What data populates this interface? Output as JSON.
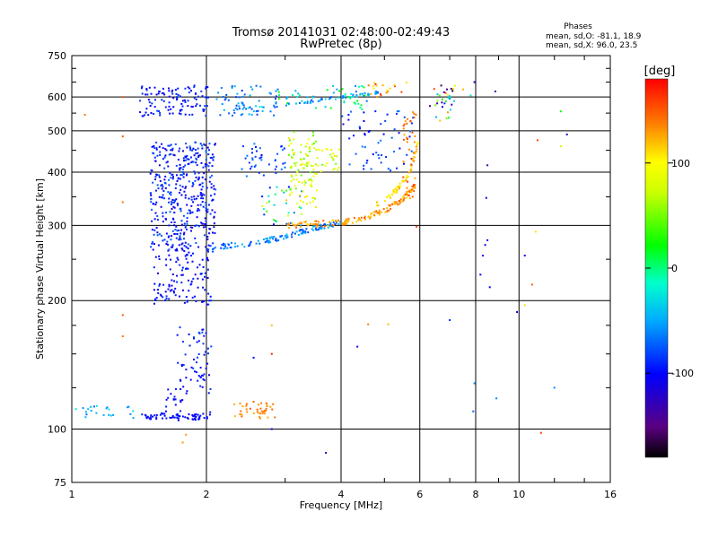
{
  "chart_data": {
    "type": "scatter",
    "title": "Tromsø 20141031 02:48:00-02:49:43",
    "subtitle": "RwPretec (8p)",
    "xlabel": "Frequency [MHz]",
    "ylabel": "Stationary phase Virtual Height [km]",
    "x_scale": "log",
    "y_scale": "log",
    "xlim": [
      1,
      16
    ],
    "ylim": [
      75,
      750
    ],
    "x_ticks": [
      1,
      2,
      4,
      6,
      8,
      10,
      16
    ],
    "x_tick_labels": [
      "1",
      "2",
      "4",
      "6",
      "8",
      "10",
      "16"
    ],
    "y_ticks": [
      75,
      100,
      200,
      300,
      400,
      500,
      600,
      750
    ],
    "y_tick_labels": [
      "75",
      "100",
      "200",
      "300",
      "400",
      "500",
      "600",
      "750"
    ],
    "grid": true,
    "phase_box": {
      "heading": "Phases",
      "line_o": "mean, sd,O: -81.1, 18.9",
      "line_x": "mean, sd,X:  96.0, 23.5"
    },
    "colorbar": {
      "label": "[deg]",
      "range": [
        -180,
        180
      ],
      "ticks": [
        100,
        0,
        -100
      ],
      "tick_labels": [
        "100",
        "0",
        "-100"
      ],
      "colormap": "rainbow"
    },
    "clusters": [
      {
        "x0": 1.42,
        "x1": 2.05,
        "y0": 540,
        "y1": 640,
        "n": 110,
        "p0": -110,
        "p1": -80
      },
      {
        "x0": 2.1,
        "x1": 2.9,
        "y0": 540,
        "y1": 640,
        "n": 60,
        "p0": -90,
        "p1": -40
      },
      {
        "x0": 2.9,
        "x1": 4.6,
        "y0": 560,
        "y1": 640,
        "n": 50,
        "p0": -80,
        "p1": 30
      },
      {
        "x0": 4.6,
        "x1": 5.6,
        "y0": 600,
        "y1": 650,
        "n": 18,
        "p0": 100,
        "p1": 170
      },
      {
        "x0": 1.5,
        "x1": 2.1,
        "y0": 260,
        "y1": 470,
        "n": 420,
        "p0": -120,
        "p1": -70
      },
      {
        "x0": 1.52,
        "x1": 2.05,
        "y0": 195,
        "y1": 260,
        "n": 110,
        "p0": -115,
        "p1": -85
      },
      {
        "x0": 2.4,
        "x1": 3.0,
        "y0": 390,
        "y1": 470,
        "n": 40,
        "p0": -100,
        "p1": -60
      },
      {
        "x0": 2.6,
        "x1": 3.3,
        "y0": 300,
        "y1": 370,
        "n": 35,
        "p0": -110,
        "p1": 120
      },
      {
        "x0": 3.05,
        "x1": 3.55,
        "y0": 330,
        "y1": 500,
        "n": 100,
        "p0": 40,
        "p1": 110
      },
      {
        "x0": 3.5,
        "x1": 4.0,
        "y0": 400,
        "y1": 460,
        "n": 25,
        "p0": 50,
        "p1": 110
      },
      {
        "x0": 4.0,
        "x1": 5.8,
        "y0": 400,
        "y1": 560,
        "n": 60,
        "p0": -110,
        "p1": -60
      },
      {
        "x0": 5.5,
        "x1": 5.9,
        "y0": 340,
        "y1": 560,
        "n": 40,
        "p0": 120,
        "p1": 160
      },
      {
        "x0": 1.72,
        "x1": 2.05,
        "y0": 120,
        "y1": 175,
        "n": 60,
        "p0": -110,
        "p1": -80
      },
      {
        "x0": 1.62,
        "x1": 1.78,
        "y0": 110,
        "y1": 125,
        "n": 18,
        "p0": -110,
        "p1": -90
      },
      {
        "x0": 1.0,
        "x1": 1.38,
        "y0": 106,
        "y1": 114,
        "n": 22,
        "p0": -70,
        "p1": -20
      },
      {
        "x0": 2.3,
        "x1": 2.85,
        "y0": 106,
        "y1": 116,
        "n": 40,
        "p0": 120,
        "p1": 150
      },
      {
        "x0": 6.3,
        "x1": 7.2,
        "y0": 520,
        "y1": 640,
        "n": 30,
        "p0": -150,
        "p1": 160
      }
    ],
    "traces": [
      {
        "name": "",
        "x": [
          1.42,
          1.6,
          1.78,
          1.92,
          2.04
        ],
        "y": [
          107.5,
          107,
          106.5,
          107,
          108
        ],
        "n": 70,
        "spread": 1.8,
        "p0": -110,
        "p1": -90
      },
      {
        "name": "",
        "x": [
          2.0,
          2.5,
          3.0,
          3.5,
          4.0
        ],
        "y": [
          266,
          272,
          282,
          296,
          305
        ],
        "n": 120,
        "spread": 4,
        "p0": -90,
        "p1": -40
      },
      {
        "name": "",
        "x": [
          3.0,
          3.5,
          4.0,
          4.5,
          5.0,
          5.5,
          5.9
        ],
        "y": [
          300,
          302,
          305,
          312,
          325,
          345,
          375
        ],
        "n": 150,
        "spread": 5,
        "p0": 110,
        "p1": 155
      },
      {
        "name": "",
        "x": [
          4.8,
          5.3,
          5.7,
          5.95
        ],
        "y": [
          335,
          360,
          400,
          470
        ],
        "n": 60,
        "spread": 6,
        "p0": 90,
        "p1": 130
      },
      {
        "name": "",
        "x": [
          2.3,
          3.0,
          3.7,
          4.3,
          4.9
        ],
        "y": [
          560,
          575,
          592,
          605,
          615
        ],
        "n": 60,
        "spread": 5,
        "p0": -80,
        "p1": -20
      }
    ],
    "isolated": [
      {
        "x": 1.3,
        "y": 600,
        "p": 150
      },
      {
        "x": 1.3,
        "y": 485,
        "p": 150
      },
      {
        "x": 1.3,
        "y": 340,
        "p": 140
      },
      {
        "x": 1.3,
        "y": 185,
        "p": 150
      },
      {
        "x": 1.3,
        "y": 165,
        "p": 140
      },
      {
        "x": 1.07,
        "y": 545,
        "p": 140
      },
      {
        "x": 1.06,
        "y": 112,
        "p": -60
      },
      {
        "x": 1.8,
        "y": 97,
        "p": 130
      },
      {
        "x": 1.77,
        "y": 93,
        "p": 130
      },
      {
        "x": 2.8,
        "y": 100,
        "p": -110
      },
      {
        "x": 2.8,
        "y": 175,
        "p": 120
      },
      {
        "x": 2.8,
        "y": 150,
        "p": 170
      },
      {
        "x": 2.55,
        "y": 147,
        "p": -100
      },
      {
        "x": 3.7,
        "y": 88,
        "p": -120
      },
      {
        "x": 4.35,
        "y": 156,
        "p": -110
      },
      {
        "x": 4.6,
        "y": 176,
        "p": 140
      },
      {
        "x": 5.1,
        "y": 176,
        "p": 120
      },
      {
        "x": 5.9,
        "y": 298,
        "p": 160
      },
      {
        "x": 7.0,
        "y": 180,
        "p": -90
      },
      {
        "x": 7.5,
        "y": 625,
        "p": 120
      },
      {
        "x": 7.8,
        "y": 605,
        "p": -20
      },
      {
        "x": 7.95,
        "y": 650,
        "p": -110
      },
      {
        "x": 7.95,
        "y": 128,
        "p": -60
      },
      {
        "x": 7.9,
        "y": 110,
        "p": -70
      },
      {
        "x": 8.2,
        "y": 230,
        "p": -100
      },
      {
        "x": 8.3,
        "y": 255,
        "p": -110
      },
      {
        "x": 8.4,
        "y": 270,
        "p": -100
      },
      {
        "x": 8.5,
        "y": 277,
        "p": -110
      },
      {
        "x": 8.45,
        "y": 348,
        "p": -100
      },
      {
        "x": 8.5,
        "y": 415,
        "p": -140
      },
      {
        "x": 8.6,
        "y": 215,
        "p": -100
      },
      {
        "x": 8.85,
        "y": 618,
        "p": -140
      },
      {
        "x": 8.9,
        "y": 118,
        "p": -60
      },
      {
        "x": 10.3,
        "y": 255,
        "p": -110
      },
      {
        "x": 10.3,
        "y": 195,
        "p": 110
      },
      {
        "x": 9.9,
        "y": 188,
        "p": -110
      },
      {
        "x": 10.7,
        "y": 218,
        "p": 150
      },
      {
        "x": 10.9,
        "y": 290,
        "p": 110
      },
      {
        "x": 11.0,
        "y": 475,
        "p": 160
      },
      {
        "x": 11.2,
        "y": 98,
        "p": 160
      },
      {
        "x": 12.0,
        "y": 125,
        "p": -60
      },
      {
        "x": 12.4,
        "y": 555,
        "p": 20
      },
      {
        "x": 12.4,
        "y": 460,
        "p": 70
      },
      {
        "x": 12.8,
        "y": 490,
        "p": -120
      },
      {
        "x": 6.7,
        "y": 638,
        "p": -160
      },
      {
        "x": 6.9,
        "y": 625,
        "p": -140
      },
      {
        "x": 7.1,
        "y": 620,
        "p": -170
      },
      {
        "x": 5.6,
        "y": 648,
        "p": 110
      }
    ]
  }
}
